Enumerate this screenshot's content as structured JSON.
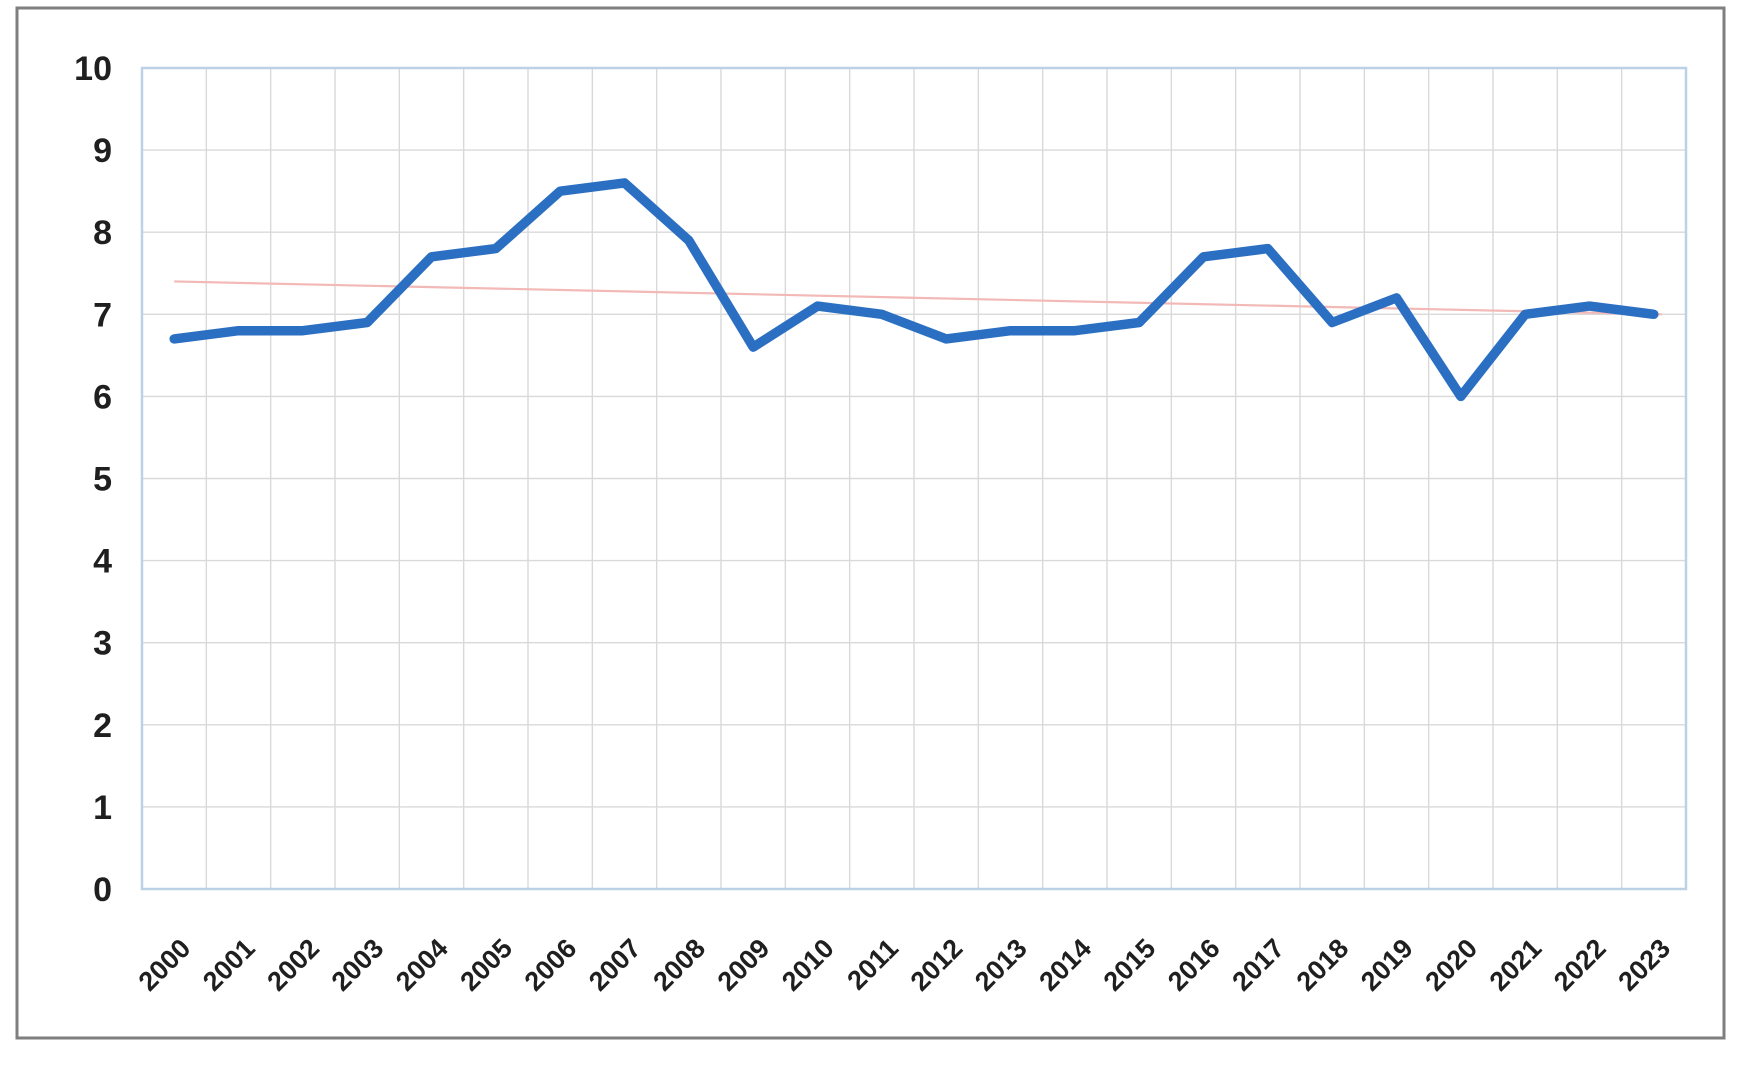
{
  "figure": {
    "background": "#ffffff",
    "outer_border_color": "#7f7f7f",
    "plot_border_color": "#bcd1e6",
    "gridline_color": "#d9d9d9"
  },
  "chart_data": {
    "type": "line",
    "title": "",
    "xlabel": "",
    "ylabel": "",
    "categories": [
      "2000",
      "2001",
      "2002",
      "2003",
      "2004",
      "2005",
      "2006",
      "2007",
      "2008",
      "2009",
      "2010",
      "2011",
      "2012",
      "2013",
      "2014",
      "2015",
      "2016",
      "2017",
      "2018",
      "2019",
      "2020",
      "2021",
      "2022",
      "2023"
    ],
    "series": [
      {
        "name": "main-series",
        "color": "#2b6fc3",
        "values": [
          6.7,
          6.8,
          6.8,
          6.9,
          7.7,
          7.8,
          8.5,
          8.6,
          7.9,
          6.6,
          7.1,
          7.0,
          6.7,
          6.8,
          6.8,
          6.9,
          7.7,
          7.8,
          6.9,
          7.2,
          6.0,
          7.0,
          7.1,
          7.0
        ]
      }
    ],
    "trendline": {
      "name": "linear-trendline",
      "color": "#f2b9b6",
      "start_value": 7.4,
      "end_value": 7.0
    },
    "ylim": [
      0,
      10
    ],
    "ytick_step": 1,
    "yticks": [
      "0",
      "1",
      "2",
      "3",
      "4",
      "5",
      "6",
      "7",
      "8",
      "9",
      "10"
    ],
    "grid": "both",
    "legend": "none",
    "axis_label_color": "#1f1f1f"
  }
}
